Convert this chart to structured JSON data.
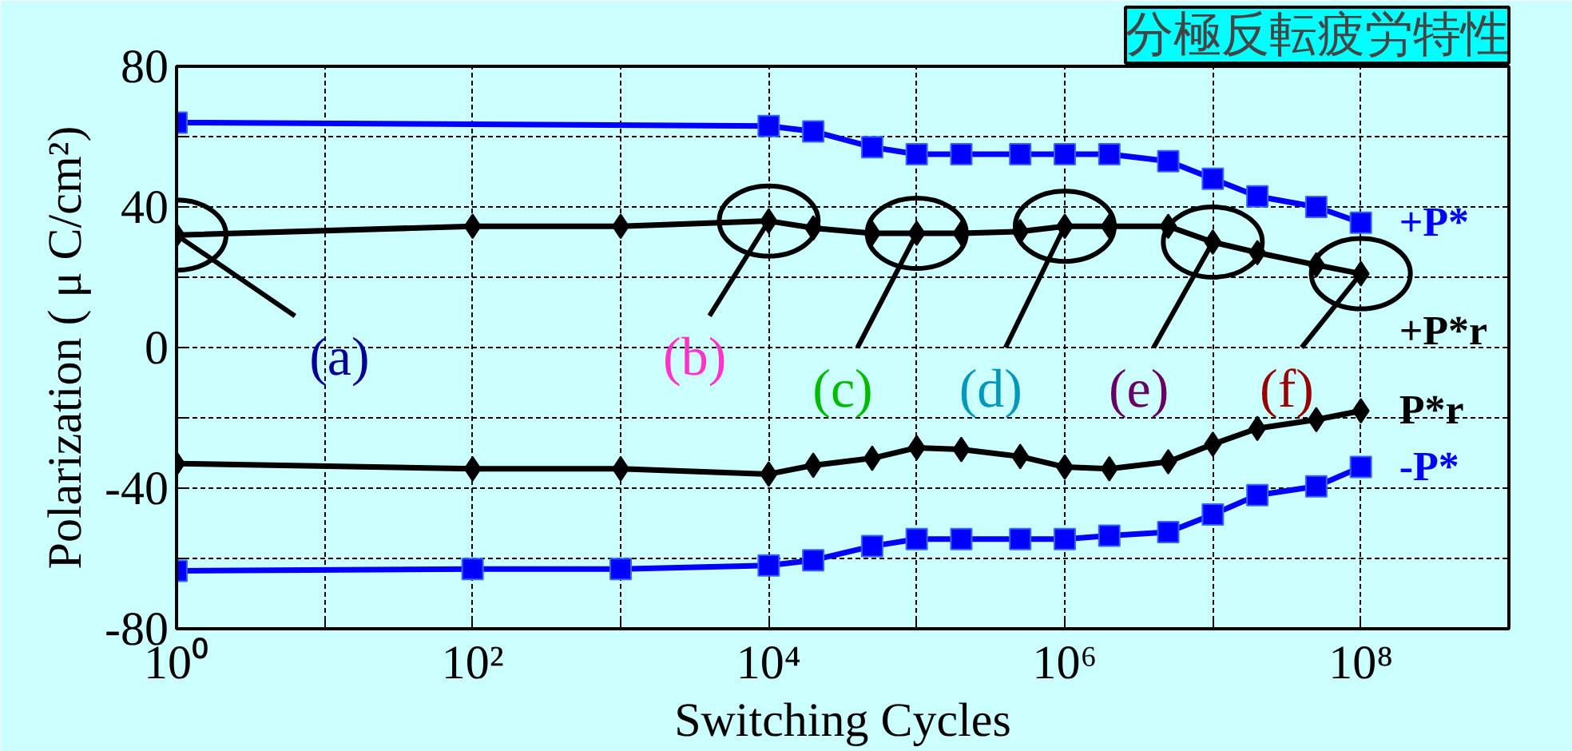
{
  "chart_data": {
    "type": "line",
    "title": "分極反転疲労特性",
    "xlabel": "Switching Cycles",
    "ylabel": "Polarization ( μ C/cm²)",
    "log": "x",
    "xlim": [
      1,
      1000000000
    ],
    "ylim": [
      -80,
      80
    ],
    "xticks": [
      {
        "value": 1,
        "label": "10⁰"
      },
      {
        "value": 10,
        "label": null
      },
      {
        "value": 100,
        "label": "10²"
      },
      {
        "value": 1000,
        "label": null
      },
      {
        "value": 10000,
        "label": "10⁴"
      },
      {
        "value": 100000,
        "label": null
      },
      {
        "value": 1000000,
        "label": "10⁶"
      },
      {
        "value": 10000000,
        "label": null
      },
      {
        "value": 100000000,
        "label": "10⁸"
      }
    ],
    "yticks": [
      -80,
      {
        "value": -60,
        "label": null
      },
      -40,
      {
        "value": -20,
        "label": null
      },
      0,
      {
        "value": 20,
        "label": null
      },
      40,
      {
        "value": 60,
        "label": null
      },
      80
    ],
    "grid": true,
    "line_style": "solid",
    "series": [
      {
        "name": "+P*",
        "color": "#0000ff",
        "marker": "square",
        "x": [
          1,
          10000,
          20000,
          50000,
          100000,
          200000,
          500000,
          1000000,
          2000000,
          5000000,
          10000000,
          20000000,
          50000000,
          100000000
        ],
        "values": [
          64,
          63,
          61.5,
          57,
          55,
          55,
          55,
          55,
          55,
          53,
          48,
          43,
          40,
          35.5
        ]
      },
      {
        "name": "+P*r",
        "color": "#000000",
        "marker": "diamond",
        "x": [
          1,
          100,
          1000,
          10000,
          20000,
          50000,
          100000,
          200000,
          500000,
          1000000,
          2000000,
          5000000,
          10000000,
          20000000,
          50000000,
          100000000
        ],
        "values": [
          32,
          34.5,
          34.5,
          36,
          34,
          32.5,
          32.5,
          32.5,
          33,
          34.5,
          34.5,
          34.5,
          30,
          27,
          23.5,
          21
        ]
      },
      {
        "name": "P*r",
        "color": "#000000",
        "marker": "diamond",
        "x": [
          1,
          100,
          1000,
          10000,
          20000,
          50000,
          100000,
          200000,
          500000,
          1000000,
          2000000,
          5000000,
          10000000,
          20000000,
          50000000,
          100000000
        ],
        "values": [
          -33,
          -34.5,
          -34.5,
          -36,
          -33.5,
          -31.5,
          -28.5,
          -29,
          -31,
          -34,
          -34.5,
          -32.5,
          -27.5,
          -23,
          -20.5,
          -18
        ]
      },
      {
        "name": "-P*",
        "color": "#0000ff",
        "marker": "square",
        "x": [
          1,
          100,
          1000,
          10000,
          20000,
          50000,
          100000,
          200000,
          500000,
          1000000,
          2000000,
          5000000,
          10000000,
          20000000,
          50000000,
          100000000
        ],
        "values": [
          -63.5,
          -63,
          -63,
          -62,
          -60.5,
          -56.5,
          -54.5,
          -54.5,
          -54.5,
          -54.5,
          -53.5,
          -52.5,
          -47.5,
          -42,
          -39.5,
          -34
        ]
      }
    ],
    "annotations": [
      {
        "text": "(a)",
        "x": 1,
        "y": 32
      },
      {
        "text": "(b)",
        "x": 10000,
        "y": 36
      },
      {
        "text": "(c)",
        "x": 100000,
        "y": 32.5
      },
      {
        "text": "(d)",
        "x": 1000000,
        "y": 34.5
      },
      {
        "text": "(e)",
        "x": 10000000,
        "y": 30
      },
      {
        "text": "(f)",
        "x": 100000000,
        "y": 21
      }
    ]
  }
}
